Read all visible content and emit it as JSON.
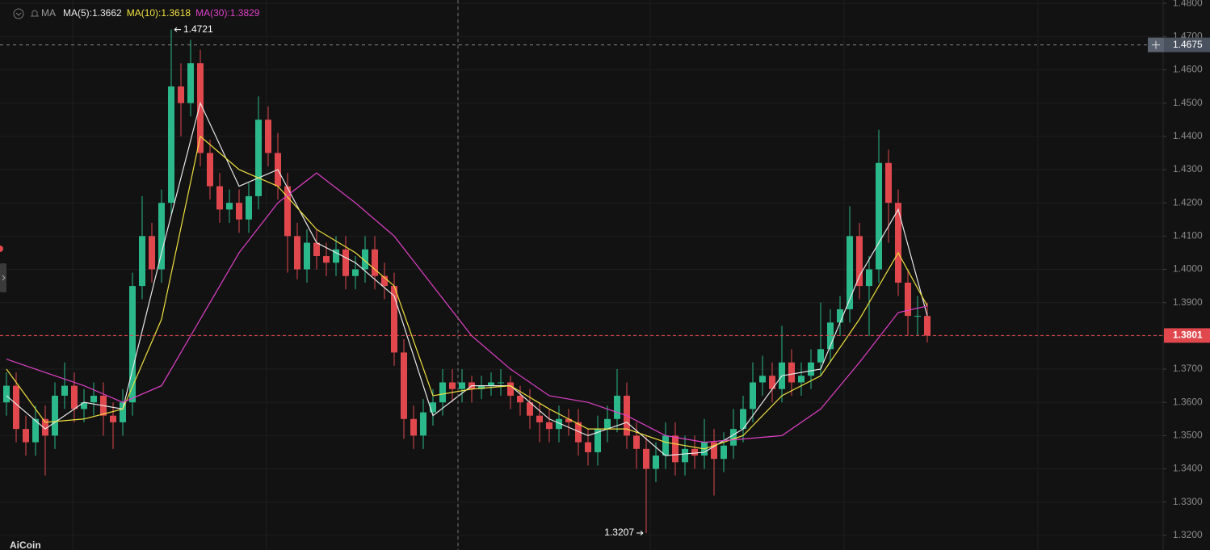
{
  "chart_data": {
    "type": "candlestick",
    "indicator": "MA",
    "up_color": "#2bb88a",
    "down_color": "#e0484e",
    "open": [
      1.36,
      1.365,
      1.352,
      1.348,
      1.355,
      1.35,
      1.362,
      1.365,
      1.358,
      1.36,
      1.362,
      1.356,
      1.354,
      1.36,
      1.395,
      1.41,
      1.4,
      1.42,
      1.455,
      1.45,
      1.462,
      1.435,
      1.425,
      1.418,
      1.42,
      1.415,
      1.422,
      1.445,
      1.435,
      1.425,
      1.41,
      1.4,
      1.408,
      1.404,
      1.402,
      1.406,
      1.398,
      1.4,
      1.406,
      1.398,
      1.395,
      1.375,
      1.355,
      1.35,
      1.357,
      1.36,
      1.366,
      1.364,
      1.366,
      1.364,
      1.365,
      1.366,
      1.366,
      1.362,
      1.36,
      1.356,
      1.354,
      1.352,
      1.355,
      1.354,
      1.348,
      1.345,
      1.352,
      1.355,
      1.362,
      1.35,
      1.346,
      1.34,
      1.344,
      1.35,
      1.342,
      1.346,
      1.344,
      1.348,
      1.343,
      1.347,
      1.352,
      1.358,
      1.366,
      1.368,
      1.364,
      1.372,
      1.366,
      1.368,
      1.372,
      1.376,
      1.384,
      1.388,
      1.41,
      1.395,
      1.4,
      1.432,
      1.42,
      1.396,
      1.386,
      1.386
    ],
    "high": [
      1.369,
      1.369,
      1.356,
      1.359,
      1.359,
      1.366,
      1.372,
      1.369,
      1.364,
      1.366,
      1.366,
      1.36,
      1.364,
      1.399,
      1.422,
      1.414,
      1.424,
      1.4721,
      1.462,
      1.469,
      1.466,
      1.439,
      1.429,
      1.424,
      1.424,
      1.426,
      1.452,
      1.449,
      1.441,
      1.429,
      1.414,
      1.412,
      1.412,
      1.408,
      1.41,
      1.41,
      1.404,
      1.41,
      1.41,
      1.402,
      1.399,
      1.379,
      1.359,
      1.361,
      1.364,
      1.37,
      1.37,
      1.37,
      1.368,
      1.368,
      1.369,
      1.37,
      1.368,
      1.365,
      1.364,
      1.36,
      1.358,
      1.359,
      1.358,
      1.358,
      1.352,
      1.356,
      1.359,
      1.37,
      1.366,
      1.354,
      1.35,
      1.348,
      1.354,
      1.354,
      1.35,
      1.35,
      1.355,
      1.352,
      1.351,
      1.358,
      1.362,
      1.372,
      1.374,
      1.372,
      1.383,
      1.376,
      1.372,
      1.376,
      1.39,
      1.388,
      1.392,
      1.419,
      1.414,
      1.404,
      1.442,
      1.436,
      1.424,
      1.4,
      1.392,
      1.39
    ],
    "low": [
      1.356,
      1.348,
      1.344,
      1.344,
      1.338,
      1.346,
      1.358,
      1.354,
      1.354,
      1.356,
      1.35,
      1.346,
      1.35,
      1.356,
      1.391,
      1.396,
      1.396,
      1.416,
      1.44,
      1.446,
      1.431,
      1.421,
      1.414,
      1.414,
      1.411,
      1.411,
      1.418,
      1.431,
      1.421,
      1.399,
      1.397,
      1.396,
      1.4,
      1.398,
      1.398,
      1.394,
      1.394,
      1.396,
      1.394,
      1.391,
      1.371,
      1.349,
      1.346,
      1.346,
      1.353,
      1.356,
      1.36,
      1.36,
      1.36,
      1.361,
      1.362,
      1.362,
      1.358,
      1.356,
      1.352,
      1.348,
      1.348,
      1.348,
      1.35,
      1.344,
      1.341,
      1.341,
      1.348,
      1.351,
      1.346,
      1.34,
      1.3207,
      1.336,
      1.34,
      1.338,
      1.338,
      1.34,
      1.34,
      1.332,
      1.339,
      1.343,
      1.348,
      1.354,
      1.362,
      1.36,
      1.36,
      1.362,
      1.362,
      1.364,
      1.368,
      1.372,
      1.38,
      1.384,
      1.391,
      1.38,
      1.396,
      1.408,
      1.392,
      1.38,
      1.38,
      1.378
    ],
    "close": [
      1.365,
      1.352,
      1.348,
      1.355,
      1.35,
      1.362,
      1.365,
      1.358,
      1.36,
      1.362,
      1.356,
      1.354,
      1.36,
      1.395,
      1.41,
      1.4,
      1.42,
      1.455,
      1.45,
      1.462,
      1.435,
      1.425,
      1.418,
      1.42,
      1.415,
      1.422,
      1.445,
      1.435,
      1.425,
      1.41,
      1.4,
      1.408,
      1.404,
      1.402,
      1.406,
      1.398,
      1.4,
      1.406,
      1.398,
      1.395,
      1.375,
      1.355,
      1.35,
      1.357,
      1.36,
      1.366,
      1.364,
      1.366,
      1.364,
      1.365,
      1.366,
      1.366,
      1.362,
      1.36,
      1.356,
      1.354,
      1.352,
      1.355,
      1.354,
      1.348,
      1.345,
      1.352,
      1.355,
      1.362,
      1.35,
      1.346,
      1.34,
      1.344,
      1.35,
      1.342,
      1.346,
      1.344,
      1.348,
      1.343,
      1.347,
      1.352,
      1.358,
      1.366,
      1.368,
      1.364,
      1.372,
      1.366,
      1.368,
      1.372,
      1.376,
      1.384,
      1.388,
      1.41,
      1.395,
      1.4,
      1.432,
      1.42,
      1.396,
      1.386,
      1.386,
      1.3801
    ],
    "series": [
      {
        "name": "MA(5):1.3662",
        "color": "#e8e8e8",
        "x": [
          0,
          4,
          8,
          12,
          16,
          20,
          24,
          28,
          32,
          36,
          40,
          44,
          48,
          52,
          56,
          60,
          64,
          68,
          72,
          76,
          80,
          84,
          88,
          92,
          95
        ],
        "values": [
          1.362,
          1.352,
          1.36,
          1.358,
          1.405,
          1.45,
          1.425,
          1.43,
          1.408,
          1.402,
          1.392,
          1.356,
          1.365,
          1.365,
          1.355,
          1.35,
          1.354,
          1.344,
          1.345,
          1.352,
          1.368,
          1.37,
          1.398,
          1.418,
          1.386
        ]
      },
      {
        "name": "MA(10):1.3618",
        "color": "#f0e040",
        "x": [
          0,
          4,
          8,
          12,
          16,
          20,
          24,
          28,
          32,
          36,
          40,
          44,
          48,
          52,
          56,
          60,
          64,
          68,
          72,
          76,
          80,
          84,
          88,
          92,
          95
        ],
        "values": [
          1.37,
          1.354,
          1.355,
          1.358,
          1.385,
          1.44,
          1.43,
          1.425,
          1.412,
          1.405,
          1.395,
          1.362,
          1.364,
          1.365,
          1.358,
          1.352,
          1.352,
          1.348,
          1.346,
          1.35,
          1.362,
          1.368,
          1.385,
          1.405,
          1.389
        ]
      },
      {
        "name": "MA(30):1.3829",
        "color": "#e040c8",
        "x": [
          0,
          4,
          8,
          12,
          16,
          20,
          24,
          28,
          32,
          36,
          40,
          44,
          48,
          52,
          56,
          60,
          64,
          68,
          72,
          76,
          80,
          84,
          88,
          92,
          95
        ],
        "values": [
          1.373,
          1.369,
          1.365,
          1.36,
          1.365,
          1.385,
          1.405,
          1.42,
          1.429,
          1.42,
          1.41,
          1.395,
          1.38,
          1.37,
          1.362,
          1.36,
          1.356,
          1.35,
          1.348,
          1.349,
          1.35,
          1.358,
          1.372,
          1.387,
          1.389
        ]
      }
    ],
    "ylim": [
      1.3156,
      1.481
    ],
    "yticks": [
      {
        "value": 1.48,
        "label": "1.4800"
      },
      {
        "value": 1.47,
        "label": "1.4700"
      },
      {
        "value": 1.46,
        "label": "1.4600"
      },
      {
        "value": 1.45,
        "label": "1.4500"
      },
      {
        "value": 1.44,
        "label": "1.4400"
      },
      {
        "value": 1.43,
        "label": "1.4300"
      },
      {
        "value": 1.42,
        "label": "1.4200"
      },
      {
        "value": 1.41,
        "label": "1.4100"
      },
      {
        "value": 1.4,
        "label": "1.4000"
      },
      {
        "value": 1.39,
        "label": "1.3900"
      },
      {
        "value": 1.38,
        "label": "1.3800"
      },
      {
        "value": 1.37,
        "label": "1.3700"
      },
      {
        "value": 1.36,
        "label": "1.3600"
      },
      {
        "value": 1.35,
        "label": "1.3500"
      },
      {
        "value": 1.34,
        "label": "1.3400"
      },
      {
        "value": 1.33,
        "label": "1.3300"
      },
      {
        "value": 1.32,
        "label": "1.3200"
      }
    ],
    "grid": true,
    "crosshair_price": 1.4675,
    "last_price": 1.3801,
    "max_label": 1.4721,
    "min_label": 1.3207,
    "watermark": "AiCoin"
  }
}
